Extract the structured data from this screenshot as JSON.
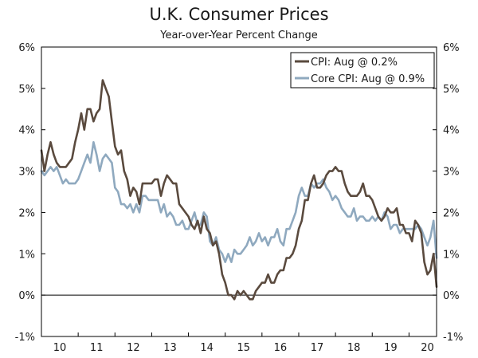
{
  "chart_data": {
    "type": "line",
    "title": "U.K. Consumer Prices",
    "subtitle": "Year-over-Year Percent Change",
    "ylim": [
      -1,
      6
    ],
    "xlim": [
      2010,
      2020.75
    ],
    "y_ticks": [
      -1,
      0,
      1,
      2,
      3,
      4,
      5,
      6
    ],
    "y_tick_labels": [
      "-1%",
      "0%",
      "1%",
      "2%",
      "3%",
      "4%",
      "5%",
      "6%"
    ],
    "x_ticks": [
      2010,
      2011,
      2012,
      2013,
      2014,
      2015,
      2016,
      2017,
      2018,
      2019,
      2020
    ],
    "x_tick_labels": [
      "10",
      "11",
      "12",
      "13",
      "14",
      "15",
      "16",
      "17",
      "18",
      "19",
      "20"
    ],
    "legend_position": "top-right",
    "colors": {
      "cpi": "#5a4a3e",
      "core": "#8fa9bf",
      "zero_line": "#000000"
    },
    "series": [
      {
        "name": "CPI: Aug @ 0.2%",
        "x_start": 2010,
        "step_months": 1,
        "values": [
          3.5,
          3.0,
          3.4,
          3.7,
          3.4,
          3.2,
          3.1,
          3.1,
          3.1,
          3.2,
          3.3,
          3.7,
          4.0,
          4.4,
          4.0,
          4.5,
          4.5,
          4.2,
          4.4,
          4.5,
          5.2,
          5.0,
          4.8,
          4.2,
          3.6,
          3.4,
          3.5,
          3.0,
          2.8,
          2.4,
          2.6,
          2.5,
          2.2,
          2.7,
          2.7,
          2.7,
          2.7,
          2.8,
          2.8,
          2.4,
          2.7,
          2.9,
          2.8,
          2.7,
          2.7,
          2.2,
          2.1,
          2.0,
          1.9,
          1.7,
          1.6,
          1.8,
          1.5,
          1.9,
          1.6,
          1.5,
          1.2,
          1.3,
          1.0,
          0.5,
          0.3,
          0.0,
          0.0,
          -0.1,
          0.1,
          0.0,
          0.1,
          0.0,
          -0.1,
          -0.1,
          0.1,
          0.2,
          0.3,
          0.3,
          0.5,
          0.3,
          0.3,
          0.5,
          0.6,
          0.6,
          0.9,
          0.9,
          1.0,
          1.2,
          1.6,
          1.8,
          2.3,
          2.3,
          2.7,
          2.9,
          2.6,
          2.6,
          2.7,
          2.9,
          3.0,
          3.0,
          3.1,
          3.0,
          3.0,
          2.7,
          2.5,
          2.4,
          2.4,
          2.4,
          2.5,
          2.7,
          2.4,
          2.4,
          2.3,
          2.1,
          1.9,
          1.8,
          1.9,
          2.1,
          2.0,
          2.0,
          2.1,
          1.7,
          1.7,
          1.5,
          1.5,
          1.3,
          1.8,
          1.7,
          1.5,
          0.8,
          0.5,
          0.6,
          1.0,
          0.2
        ]
      },
      {
        "name": "Core CPI: Aug @ 0.9%",
        "x_start": 2010,
        "step_months": 1,
        "values": [
          3.0,
          2.9,
          3.0,
          3.1,
          3.0,
          3.1,
          2.9,
          2.7,
          2.8,
          2.7,
          2.7,
          2.7,
          2.8,
          3.0,
          3.2,
          3.4,
          3.2,
          3.7,
          3.4,
          3.0,
          3.3,
          3.4,
          3.3,
          3.2,
          2.6,
          2.5,
          2.2,
          2.2,
          2.1,
          2.2,
          2.0,
          2.2,
          2.0,
          2.4,
          2.4,
          2.3,
          2.3,
          2.3,
          2.3,
          2.0,
          2.2,
          1.9,
          2.0,
          1.9,
          1.7,
          1.7,
          1.8,
          1.6,
          1.6,
          1.8,
          2.0,
          1.7,
          1.7,
          2.0,
          1.9,
          1.3,
          1.2,
          1.4,
          1.1,
          1.0,
          0.8,
          1.0,
          0.8,
          1.1,
          1.0,
          1.0,
          1.1,
          1.2,
          1.4,
          1.2,
          1.3,
          1.5,
          1.3,
          1.4,
          1.2,
          1.4,
          1.4,
          1.6,
          1.3,
          1.2,
          1.6,
          1.6,
          1.8,
          2.0,
          2.4,
          2.6,
          2.4,
          2.4,
          2.7,
          2.6,
          2.7,
          2.7,
          2.8,
          2.6,
          2.5,
          2.3,
          2.4,
          2.3,
          2.1,
          2.0,
          1.9,
          1.9,
          2.1,
          1.8,
          1.9,
          1.9,
          1.8,
          1.8,
          1.9,
          1.8,
          1.9,
          1.8,
          2.0,
          1.9,
          1.6,
          1.7,
          1.7,
          1.5,
          1.6,
          1.6,
          1.6,
          1.6,
          1.6,
          1.7,
          1.6,
          1.4,
          1.2,
          1.4,
          1.8,
          0.9
        ]
      }
    ]
  }
}
